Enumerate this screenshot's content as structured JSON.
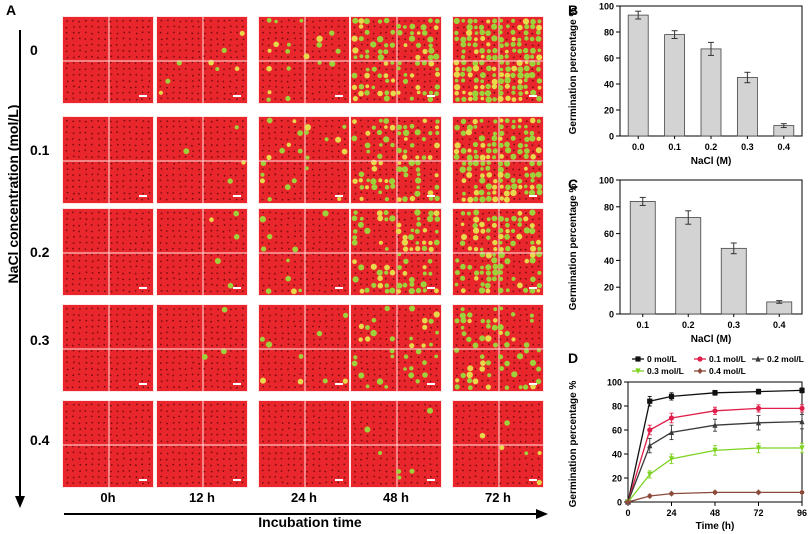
{
  "panel_a": {
    "letter": "A",
    "y_axis_title": "NaCl concentration (mol/L)",
    "x_axis_title": "Incubation time",
    "rows": [
      "0",
      "0.1",
      "0.2",
      "0.3",
      "0.4"
    ],
    "cols": [
      "0h",
      "12 h",
      "24 h",
      "48 h",
      "72 h"
    ],
    "tile_green_fraction": [
      [
        0.0,
        0.03,
        0.1,
        0.45,
        0.75
      ],
      [
        0.0,
        0.02,
        0.08,
        0.4,
        0.6
      ],
      [
        0.0,
        0.02,
        0.06,
        0.35,
        0.55
      ],
      [
        0.0,
        0.01,
        0.03,
        0.15,
        0.25
      ],
      [
        0.0,
        0.0,
        0.0,
        0.02,
        0.04
      ]
    ],
    "colors": {
      "base": "#e8262c",
      "seed": "#7a0e0e",
      "sprout": "#9ed23a",
      "sprout_yellow": "#e6d94a"
    }
  },
  "chart_data": [
    {
      "id": "B",
      "letter": "B",
      "type": "bar",
      "categories": [
        "0.0",
        "0.1",
        "0.2",
        "0.3",
        "0.4"
      ],
      "values": [
        93,
        78,
        67,
        45,
        8
      ],
      "errors": [
        3,
        3,
        5,
        4,
        1.5
      ],
      "xlabel": "NaCl (M)",
      "ylabel": "Germination percentage %",
      "ylim": [
        0,
        100
      ],
      "yticks": [
        "0",
        "20",
        "40",
        "60",
        "80",
        "100"
      ],
      "bar_color": "#d3d3d3"
    },
    {
      "id": "C",
      "letter": "C",
      "type": "bar",
      "categories": [
        "0.1",
        "0.2",
        "0.3",
        "0.4"
      ],
      "values": [
        84,
        72,
        49,
        9
      ],
      "errors": [
        3,
        5,
        4,
        1
      ],
      "xlabel": "NaCl (M)",
      "ylabel": "Germination percentage %",
      "ylim": [
        0,
        100
      ],
      "yticks": [
        "0",
        "20",
        "40",
        "60",
        "80",
        "100"
      ],
      "bar_color": "#d3d3d3"
    },
    {
      "id": "D",
      "letter": "D",
      "type": "line",
      "xlabel": "Time (h)",
      "ylabel": "Germination percentage %",
      "xlim": [
        0,
        96
      ],
      "ylim": [
        0,
        100
      ],
      "xticks": [
        "0",
        "24",
        "48",
        "72",
        "96"
      ],
      "yticks": [
        "0",
        "20",
        "40",
        "60",
        "80",
        "100"
      ],
      "x": [
        0,
        12,
        24,
        48,
        72,
        96
      ],
      "series": [
        {
          "name": "0 mol/L",
          "color": "#111111",
          "marker": "square",
          "values": [
            0,
            84,
            88,
            91,
            92,
            93
          ],
          "errors": [
            0,
            4,
            3,
            2,
            2,
            2
          ]
        },
        {
          "name": "0.1 mol/L",
          "color": "#e0204a",
          "marker": "circle",
          "values": [
            0,
            60,
            70,
            76,
            78,
            78
          ],
          "errors": [
            0,
            4,
            4,
            3,
            3,
            3
          ]
        },
        {
          "name": "0.2 mol/L",
          "color": "#3a3a3a",
          "marker": "triangle",
          "values": [
            0,
            47,
            58,
            64,
            66,
            67
          ],
          "errors": [
            0,
            6,
            6,
            5,
            6,
            6
          ]
        },
        {
          "name": "0.3 mol/L",
          "color": "#7ed321",
          "marker": "triangle-down",
          "values": [
            0,
            23,
            36,
            43,
            45,
            45
          ],
          "errors": [
            0,
            3,
            4,
            4,
            4,
            4
          ]
        },
        {
          "name": "0.4 mol/L",
          "color": "#8b4a3a",
          "marker": "diamond",
          "values": [
            0,
            5,
            7,
            8,
            8,
            8
          ],
          "errors": [
            0,
            1,
            1,
            1,
            1,
            1
          ]
        }
      ]
    }
  ]
}
